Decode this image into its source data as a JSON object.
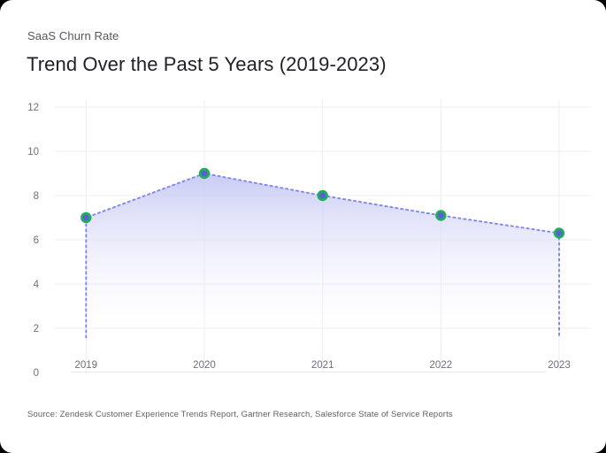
{
  "header": {
    "label": "SaaS Churn Rate",
    "title": "Trend Over the Past 5 Years (2019-2023)"
  },
  "footer": {
    "source": "Source: Zendesk Customer Experience Trends Report, Gartner Research, Salesforce State of Service Reports"
  },
  "chart_data": {
    "type": "area",
    "title": "SaaS Churn Rate — Trend Over the Past 5 Years (2019-2023)",
    "categories": [
      "2019",
      "2020",
      "2021",
      "2022",
      "2023"
    ],
    "values": [
      7.0,
      9.0,
      8.0,
      7.1,
      6.3
    ],
    "xlabel": "",
    "ylabel": "",
    "ylim": [
      0,
      12
    ],
    "yticks": [
      0,
      2,
      4,
      6,
      8,
      10,
      12
    ],
    "grid": true,
    "legend": false,
    "line_style": "dotted",
    "colors": {
      "line": "#8185ef",
      "point_fill": "#5a5ed9",
      "point_stroke": "#1fae5e",
      "area_top": "#c3c6f2",
      "area_bottom": "#ffffff",
      "gridline": "#ededf0",
      "zero_line": "#e7e7ea",
      "axis_text": "#6d7076"
    }
  }
}
